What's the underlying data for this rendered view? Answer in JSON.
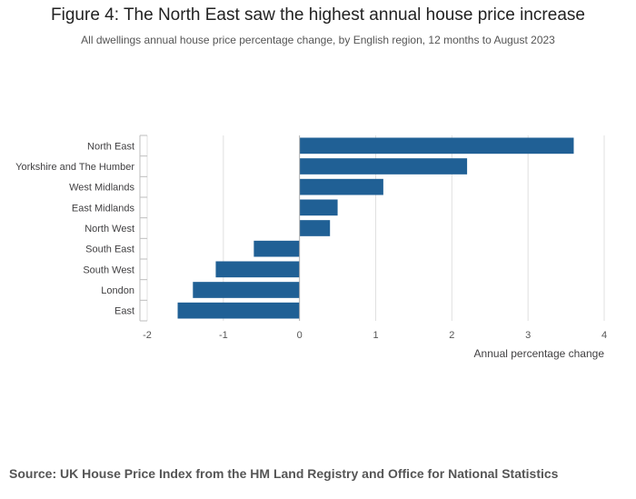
{
  "header": {
    "title": "Figure 4: The North East saw the highest annual house price increase",
    "subtitle": "All dwellings annual house price percentage change, by English region, 12 months to August 2023"
  },
  "footer": {
    "source": "Source: UK House Price Index from the HM Land Registry and Office for National Statistics"
  },
  "colors": {
    "bar": "#206095",
    "grid": "#e0e0e0",
    "axis": "#bebebe"
  },
  "chart_data": {
    "type": "bar",
    "orientation": "horizontal",
    "categories": [
      "North East",
      "Yorkshire and The Humber",
      "West Midlands",
      "East Midlands",
      "North West",
      "South East",
      "South West",
      "London",
      "East"
    ],
    "values": [
      3.6,
      2.2,
      1.1,
      0.5,
      0.4,
      -0.6,
      -1.1,
      -1.4,
      -1.6
    ],
    "xlabel": "Annual percentage change",
    "ylabel": "",
    "xlim": [
      -2,
      4
    ],
    "xticks": [
      -2,
      -1,
      0,
      1,
      2,
      3,
      4
    ],
    "grid": true,
    "legend": "none"
  }
}
